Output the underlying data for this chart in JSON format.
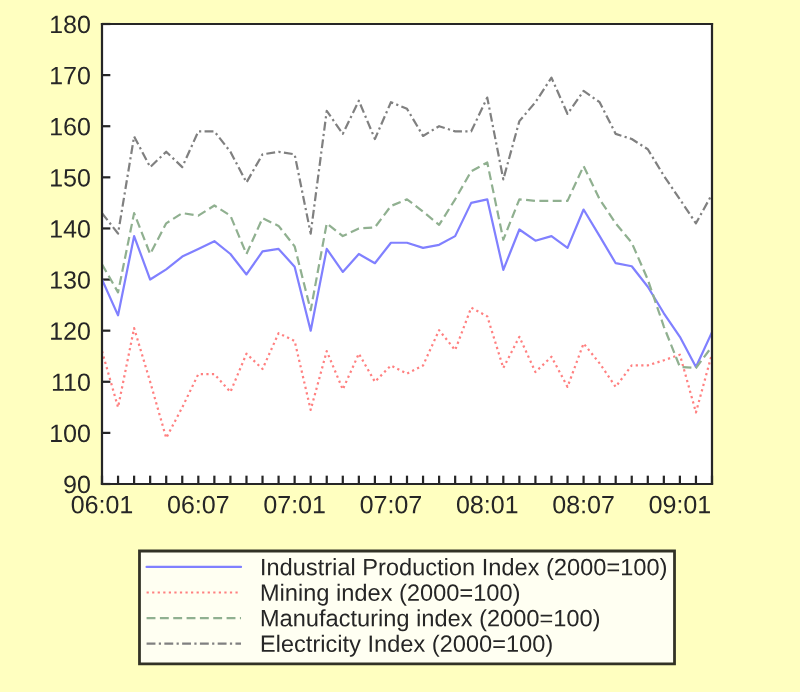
{
  "chart_data": {
    "type": "line",
    "categories": [
      "06:01",
      null,
      null,
      null,
      null,
      null,
      "06:07",
      null,
      null,
      null,
      null,
      null,
      "07:01",
      null,
      null,
      null,
      null,
      null,
      "07:07",
      null,
      null,
      null,
      null,
      null,
      "08:01",
      null,
      null,
      null,
      null,
      null,
      "08:07",
      null,
      null,
      null,
      null,
      null,
      "09:01",
      null,
      null
    ],
    "series": [
      {
        "name": "Industrial Production Index (2000=100)",
        "color": "#8080ff",
        "line_style": "solid",
        "values": [
          130,
          123,
          138.5,
          130,
          132,
          134.5,
          136,
          137.5,
          135,
          131,
          135.5,
          136,
          132.5,
          120,
          136,
          131.5,
          135,
          133.2,
          137.2,
          137.2,
          136.2,
          136.8,
          138.5,
          145,
          145.7,
          131.9,
          139.8,
          137.6,
          138.5,
          136.2,
          143.7,
          138.5,
          133.2,
          132.6,
          128.6,
          123.4,
          118.8,
          112.9,
          119.7
        ]
      },
      {
        "name": "Mining index (2000=100)",
        "color": "#ff8080",
        "line_style": "dotted",
        "values": [
          116,
          105,
          120.5,
          110,
          99,
          105,
          111.5,
          111.5,
          108,
          115.5,
          112.5,
          119.5,
          118,
          104.5,
          116,
          108.5,
          115.5,
          110,
          113.2,
          111.6,
          113.2,
          120.1,
          116.2,
          124.5,
          122.8,
          112.7,
          118.8,
          111.9,
          114.9,
          109,
          117.5,
          113.6,
          109,
          113.2,
          113.2,
          114.2,
          115.3,
          104,
          115.5
        ]
      },
      {
        "name": "Manufacturing index (2000=100)",
        "color": "#90b090",
        "line_style": "dashed",
        "values": [
          133,
          127.5,
          143,
          135,
          141,
          143,
          142.5,
          144.5,
          142.5,
          135,
          142,
          140.5,
          136.5,
          124,
          141,
          138.5,
          140,
          140.2,
          144.4,
          145.7,
          143.3,
          140.7,
          145.7,
          151.2,
          152.9,
          137.8,
          145.7,
          145.4,
          145.4,
          145.4,
          152.2,
          145.7,
          141,
          137.2,
          130,
          120.8,
          112.9,
          112.7,
          116.9
        ]
      },
      {
        "name": "Electricity Index (2000=100)",
        "color": "#808080",
        "line_style": "dashdot",
        "values": [
          143,
          139,
          158,
          152,
          155,
          152,
          159,
          159,
          155,
          149,
          154.5,
          155,
          154.5,
          139,
          163,
          158.5,
          165,
          157.5,
          164.7,
          163.4,
          158.1,
          160,
          159,
          159,
          165.6,
          149.6,
          161,
          164.7,
          169.5,
          162.4,
          166.9,
          164.7,
          158.5,
          157.5,
          155.5,
          150.3,
          145.7,
          141,
          146.7
        ]
      }
    ],
    "ylim": [
      90,
      180
    ],
    "yticks": [
      90,
      100,
      110,
      120,
      130,
      140,
      150,
      160,
      170,
      180
    ],
    "grid": false,
    "legend": "bottom"
  }
}
